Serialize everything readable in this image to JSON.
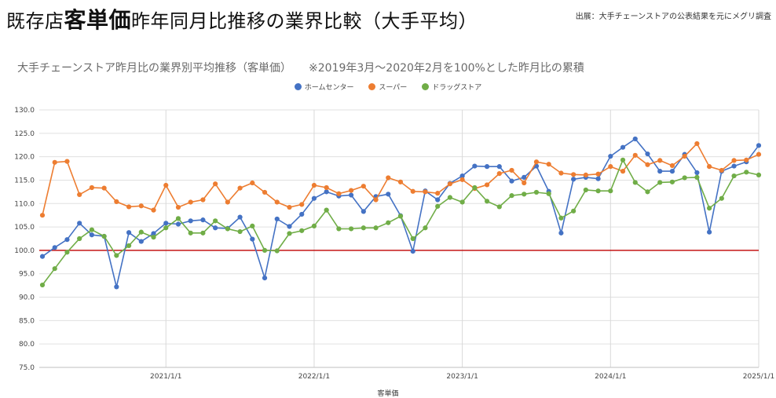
{
  "header": {
    "title_prefix": "既存店",
    "title_emphasis": "客単価",
    "title_suffix": "昨年同月比推移の業界比較（大手平均）",
    "source": "出展：大手チェーンストアの公表結果を元にメグリ調査"
  },
  "chart_data": {
    "type": "line",
    "title": "大手チェーンストア昨月比の業界別平均推移（客単価）",
    "subtitle": "※2019年3月～2020年2月を100%とした昨月比の累積",
    "xlabel": "客単価",
    "ylabel": "",
    "ylim": [
      75,
      130
    ],
    "yticks": [
      "75.0",
      "80.0",
      "85.0",
      "90.0",
      "95.0",
      "100.0",
      "105.0",
      "110.0",
      "115.0",
      "120.0",
      "125.0",
      "130.0"
    ],
    "x_start": "2020/3",
    "x_end": "2025/1",
    "xticks": [
      "2021/1/1",
      "2022/1/1",
      "2023/1/1",
      "2024/1/1",
      "2025/1/1"
    ],
    "xtick_month_index": [
      10,
      22,
      34,
      46,
      58
    ],
    "reference_line": 100,
    "reference_color": "#c00000",
    "grid": "vertical",
    "legend_position": "top",
    "series": [
      {
        "name": "ホームセンター",
        "color": "#4472c4",
        "values": [
          98.7,
          100.6,
          102.3,
          105.8,
          103.3,
          103.0,
          92.2,
          103.8,
          101.9,
          103.6,
          105.8,
          105.6,
          106.3,
          106.5,
          104.8,
          104.7,
          107.1,
          102.4,
          94.1,
          106.7,
          105.1,
          107.7,
          111.1,
          112.5,
          111.6,
          111.8,
          108.3,
          111.5,
          112.0,
          107.4,
          99.8,
          112.7,
          110.8,
          114.3,
          115.9,
          118.0,
          117.9,
          117.9,
          114.8,
          115.6,
          118.0,
          112.6,
          103.7,
          115.2,
          115.6,
          115.3,
          120.1,
          122.0,
          123.8,
          120.6,
          116.9,
          116.9,
          120.5,
          116.6,
          103.9,
          116.9,
          118.0,
          118.9,
          122.4
        ]
      },
      {
        "name": "スーパー",
        "color": "#ed7d31",
        "values": [
          107.5,
          118.8,
          119.0,
          111.9,
          113.4,
          113.3,
          110.4,
          109.3,
          109.5,
          108.6,
          113.9,
          109.2,
          110.3,
          110.8,
          114.2,
          110.3,
          113.3,
          114.4,
          112.4,
          110.3,
          109.2,
          109.8,
          113.9,
          113.4,
          112.1,
          112.8,
          113.7,
          110.8,
          115.5,
          114.6,
          112.6,
          112.5,
          112.2,
          114.2,
          115.1,
          113.2,
          114.0,
          116.4,
          117.1,
          114.4,
          118.9,
          118.4,
          116.5,
          116.2,
          116.1,
          116.3,
          117.9,
          116.9,
          120.3,
          118.3,
          119.2,
          118.1,
          120.1,
          122.8,
          117.9,
          117.1,
          119.2,
          119.3,
          120.5
        ]
      },
      {
        "name": "ドラッグストア",
        "color": "#70ad47",
        "values": [
          92.6,
          96.1,
          99.6,
          102.5,
          104.4,
          103.0,
          98.9,
          101.0,
          103.9,
          102.8,
          104.8,
          106.8,
          103.7,
          103.7,
          106.3,
          104.6,
          104.0,
          105.2,
          100.0,
          99.9,
          103.6,
          104.2,
          105.2,
          108.6,
          104.6,
          104.6,
          104.8,
          104.8,
          105.9,
          107.3,
          102.5,
          104.8,
          109.4,
          111.3,
          110.3,
          113.4,
          110.5,
          109.3,
          111.7,
          112.0,
          112.4,
          112.1,
          106.9,
          108.4,
          112.9,
          112.7,
          112.7,
          119.3,
          114.5,
          112.5,
          114.5,
          114.6,
          115.5,
          115.6,
          109.0,
          111.1,
          115.9,
          116.7,
          116.1
        ]
      }
    ]
  }
}
